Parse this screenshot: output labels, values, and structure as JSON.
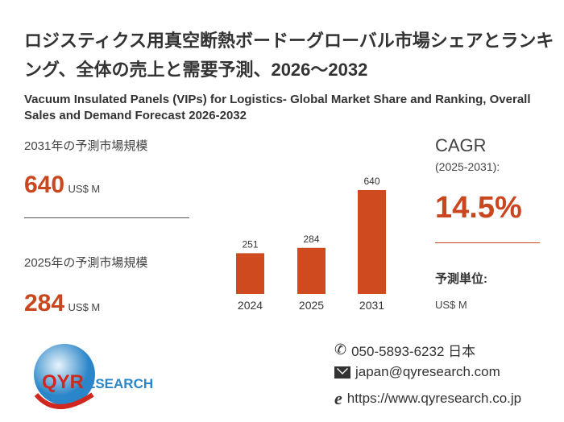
{
  "title_ja": "ロジスティクス用真空断熱ボードーグローバル市場シェアとランキング、全体の売上と需要予測、2026～2032",
  "title_en": "Vacuum Insulated Panels (VIPs) for Logistics- Global Market Share and Ranking, Overall Sales and Demand Forecast 2026-2032",
  "left": {
    "label_2031": "2031年の予測市場規模",
    "value_2031": "640",
    "unit_2031": "US$ M",
    "label_2025": "2025年の予測市場規模",
    "value_2025": "284",
    "unit_2025": "US$ M"
  },
  "right": {
    "cagr_label": "CAGR",
    "cagr_period": "(2025-2031):",
    "cagr_value": "14.5%",
    "unit_label": "予測単位:",
    "unit_value": "US$ M"
  },
  "chart_data": {
    "type": "bar",
    "categories": [
      "2024",
      "2025",
      "2031"
    ],
    "values": [
      251,
      284,
      640
    ],
    "data_labels": [
      "251",
      "284",
      "640"
    ],
    "color": "#d04a1f",
    "ylim": [
      0,
      640
    ]
  },
  "contact": {
    "phone": "050-5893-6232 日本",
    "email": "japan@qyresearch.com",
    "web": "https://www.qyresearch.co.jp"
  },
  "logo": {
    "text": "QYRESEARCH"
  }
}
